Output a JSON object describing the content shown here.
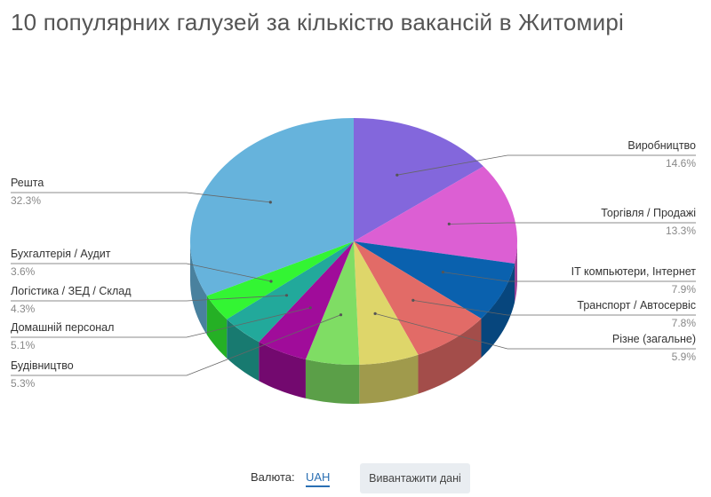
{
  "title": "10 популярних галузей за кількістю вакансій в Житомирі",
  "footer": {
    "currency_label": "Валюта:",
    "currency_value": "UAH",
    "download_button": "Вивантажити дані"
  },
  "chart_data": {
    "type": "pie",
    "title": "10 популярних галузей за кількістю вакансій в Житомирі",
    "slices": [
      {
        "name": "Виробництво",
        "pct_label": "14.6%",
        "value": 14.6,
        "color": "#8367dc"
      },
      {
        "name": "Торгівля / Продажі",
        "pct_label": "13.3%",
        "value": 13.3,
        "color": "#dc5fd3"
      },
      {
        "name": "IT компьютери, Інтернет",
        "pct_label": "7.9%",
        "value": 7.9,
        "color": "#0a61ae"
      },
      {
        "name": "Транспорт / Автосервіс",
        "pct_label": "7.8%",
        "value": 7.8,
        "color": "#e26b67"
      },
      {
        "name": "Різне (загальне)",
        "pct_label": "5.9%",
        "value": 5.9,
        "color": "#ded66a"
      },
      {
        "name": "Будівництво",
        "pct_label": "5.3%",
        "value": 5.3,
        "color": "#7fdd64"
      },
      {
        "name": "Домашній персонал",
        "pct_label": "5.1%",
        "value": 5.1,
        "color": "#a00c9a"
      },
      {
        "name": "Логістика / ЗЕД / Склад",
        "pct_label": "4.3%",
        "value": 4.3,
        "color": "#22a99b"
      },
      {
        "name": "Бухгалтерія / Аудит",
        "pct_label": "3.6%",
        "value": 3.6,
        "color": "#33f533"
      },
      {
        "name": "Решта",
        "pct_label": "32.3%",
        "value": 32.3,
        "color": "#66b3dc"
      }
    ]
  }
}
